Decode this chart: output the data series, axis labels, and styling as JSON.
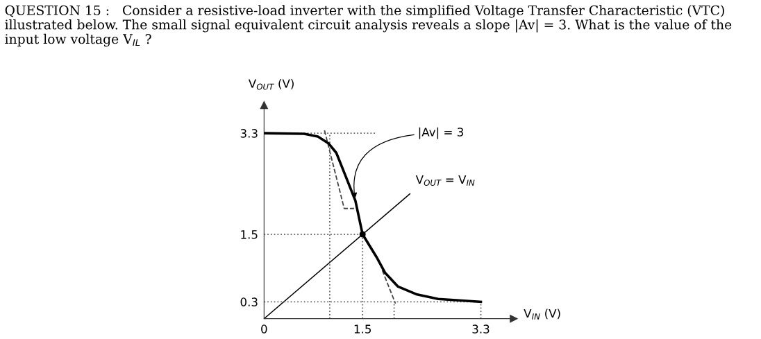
{
  "chart_data": {
    "type": "line",
    "title": "QUESTION 15 :   Consider a resistive-load inverter with the simplified Voltage Transfer Characteristic (VTC) illustrated below. The small signal equivalent circuit analysis reveals a slope |Av| = 3. What is the value of the input low voltage V$_{IL}$ ?",
    "xlabel": "V$_{IN}$ (V)",
    "ylabel": "V$_{OUT}$ (V)",
    "xlim": [
      0,
      3.8
    ],
    "ylim": [
      0,
      3.8
    ],
    "xticks": [
      {
        "value": 0,
        "label": "0"
      },
      1.5,
      3.3
    ],
    "yticks": [
      0.3,
      1.5,
      3.3
    ],
    "series": [
      {
        "color": "#000000",
        "line_style": "solid",
        "x": [
          0,
          0.61,
          0.82,
          0.98,
          1.1,
          1.22,
          1.39,
          1.5,
          1.71,
          1.84,
          2.04,
          2.33,
          2.65,
          3.3
        ],
        "values": [
          3.3,
          3.29,
          3.24,
          3.12,
          2.95,
          2.6,
          2.1,
          1.5,
          1.1,
          0.82,
          0.57,
          0.43,
          0.35,
          0.3
        ]
      },
      {
        "name": "V$_{OUT}$ = V$_{IN}$",
        "color": "#000000",
        "line_style": "solid",
        "x": [
          0,
          2.22
        ],
        "values": [
          0,
          2.22
        ]
      },
      {
        "color": "#444444",
        "line_style": "dashed",
        "x": [
          0.92,
          1.22,
          1.37
        ],
        "values": [
          3.35,
          1.96,
          1.96
        ]
      },
      {
        "color": "#444444",
        "line_style": "dashed",
        "x": [
          1.8,
          2.0
        ],
        "values": [
          0.86,
          0.27
        ]
      },
      {
        "color": "#666666",
        "line_style": "dotted",
        "x": [
          0,
          1.71
        ],
        "values": [
          3.3,
          3.3
        ]
      },
      {
        "color": "#666666",
        "line_style": "dotted",
        "x": [
          0,
          1.5
        ],
        "values": [
          1.5,
          1.5
        ]
      },
      {
        "color": "#666666",
        "line_style": "dotted",
        "x": [
          0,
          3.3
        ],
        "values": [
          0.3,
          0.3
        ]
      },
      {
        "color": "#666666",
        "line_style": "dotted",
        "x": [
          1.0,
          1.0
        ],
        "values": [
          0,
          3.3
        ]
      },
      {
        "color": "#666666",
        "line_style": "dotted",
        "x": [
          1.5,
          1.5
        ],
        "values": [
          0,
          1.5
        ]
      },
      {
        "color": "#666666",
        "line_style": "dotted",
        "x": [
          1.98,
          1.98
        ],
        "values": [
          0,
          0.3
        ]
      },
      {
        "color": "#666666",
        "line_style": "dotted",
        "x": [
          3.3,
          3.3
        ],
        "values": [
          0,
          0.3
        ]
      },
      {
        "type": "scatter",
        "color": "#000000",
        "marker": "circle",
        "x": [
          1.5
        ],
        "values": [
          1.5
        ]
      }
    ],
    "annotations": [
      {
        "text": "|Av| = 3",
        "x": 1.39,
        "y": 2.1
      }
    ]
  }
}
